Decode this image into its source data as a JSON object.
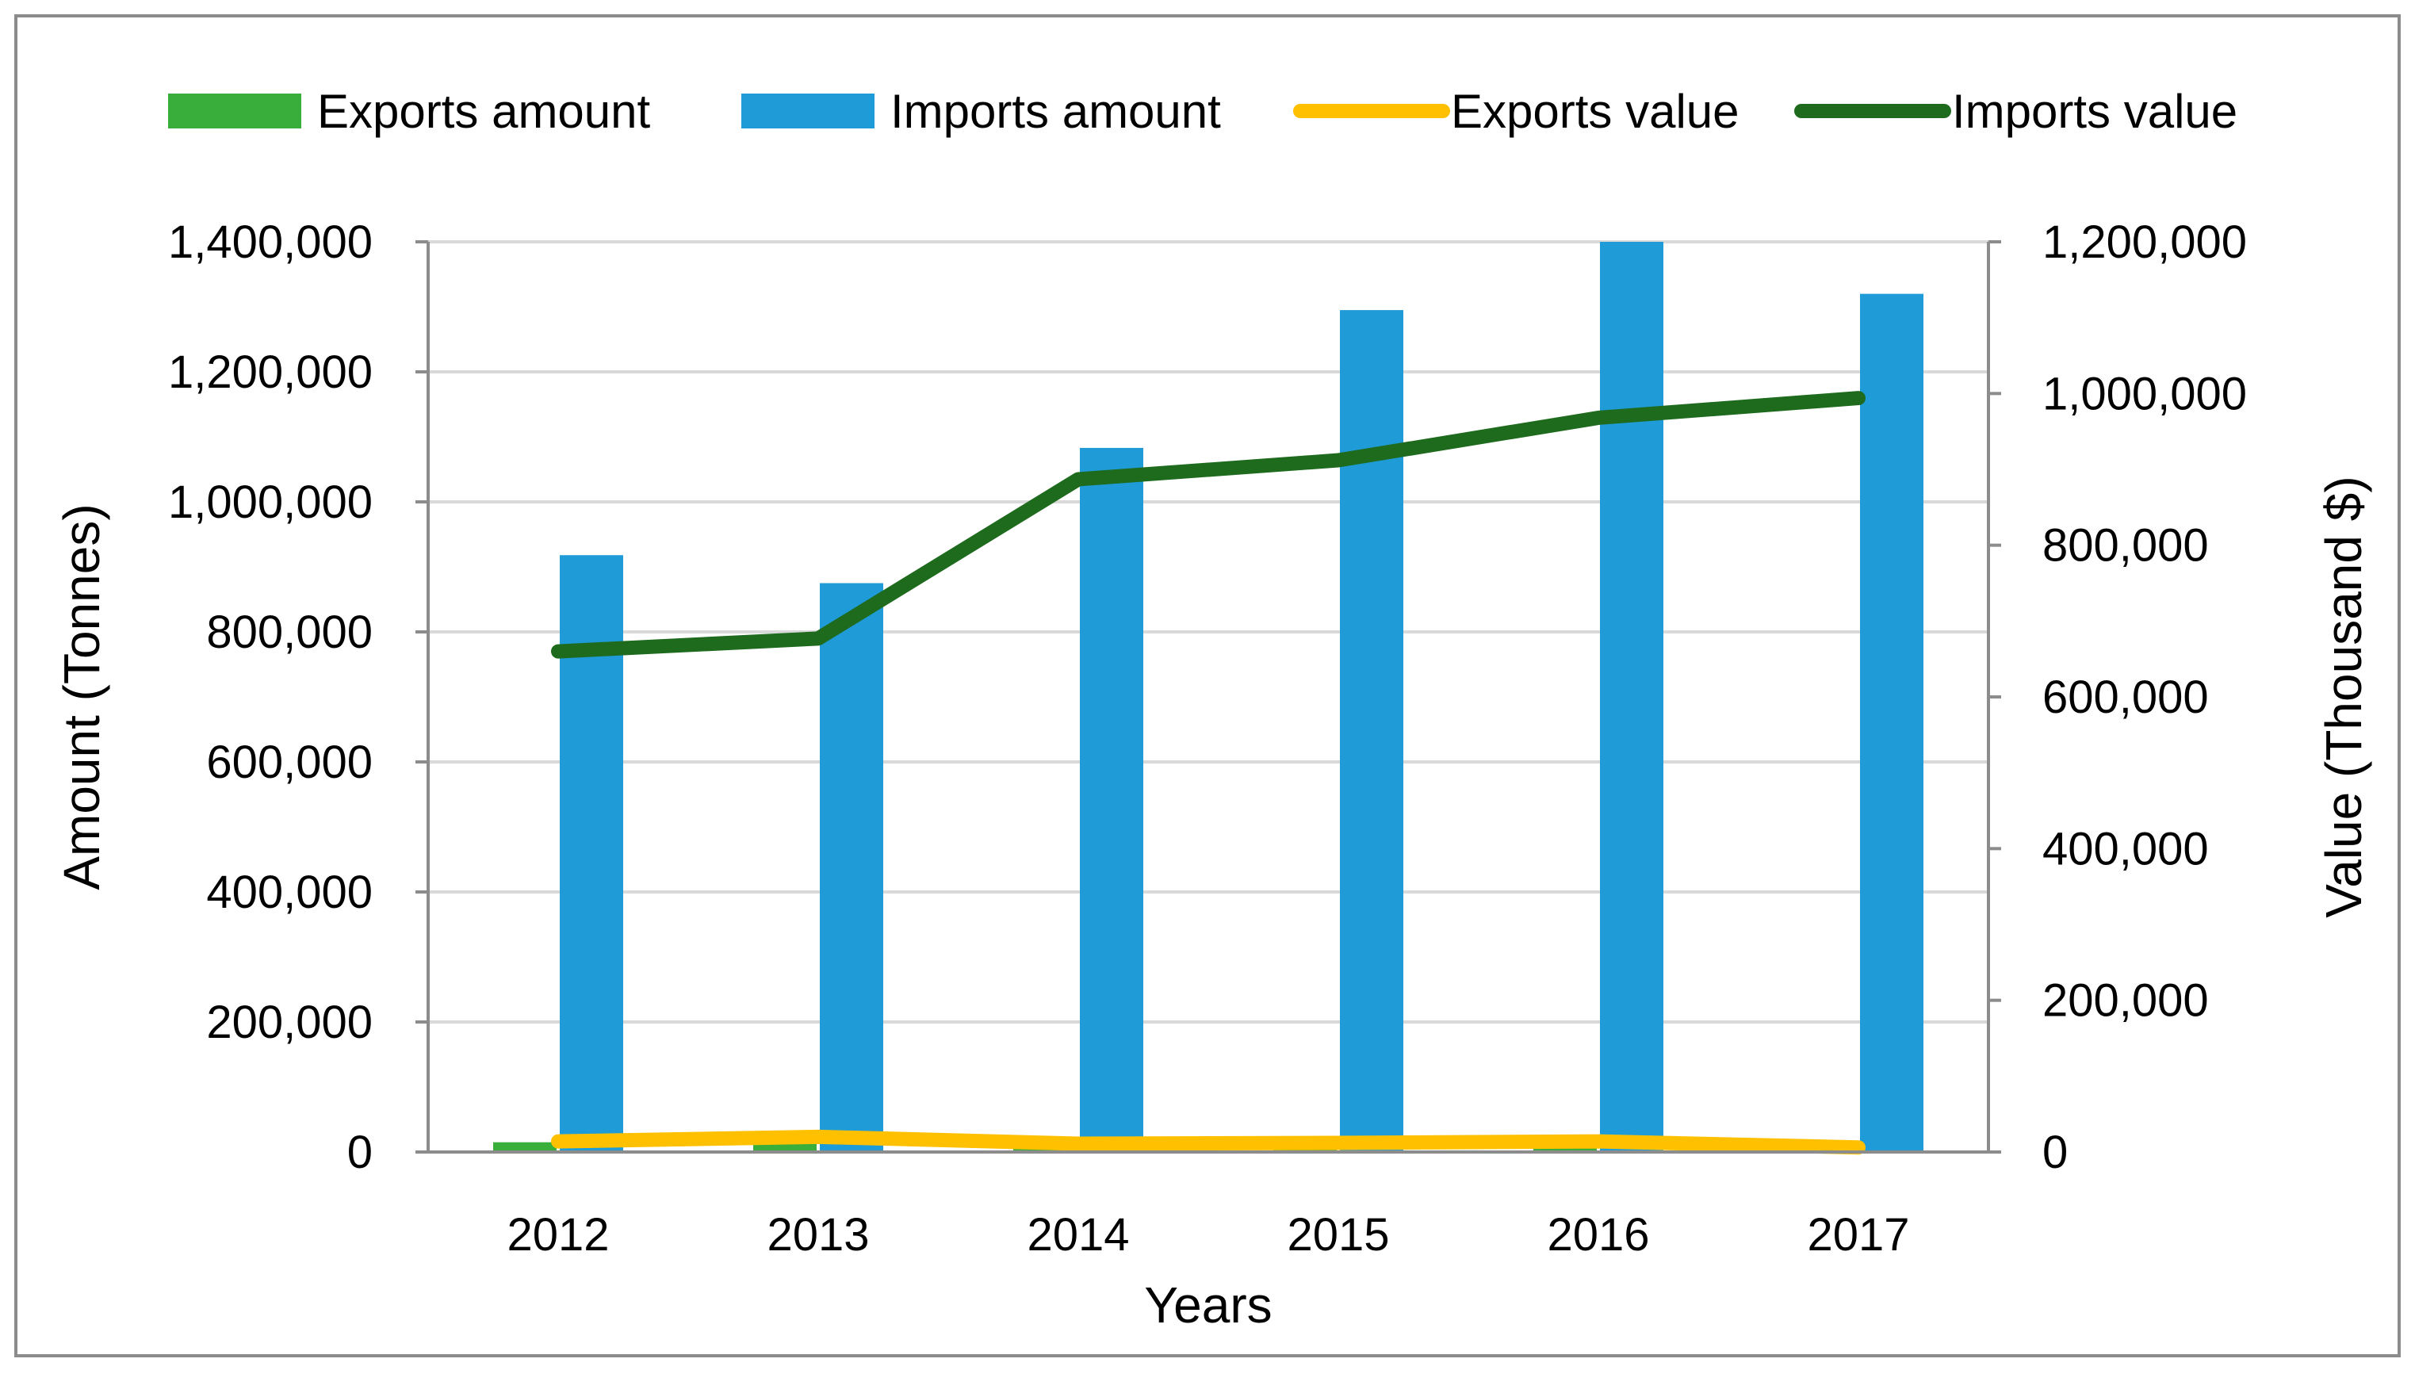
{
  "chart_data": {
    "type": "bar",
    "categories": [
      "2012",
      "2013",
      "2014",
      "2015",
      "2016",
      "2017"
    ],
    "xlabel": "Years",
    "ylabel": "Amount (Tonnes)",
    "y2label": "Value (Thousand $)",
    "ylim": [
      0,
      1400000
    ],
    "y2lim": [
      0,
      1200000
    ],
    "yticks": [
      "0",
      "200,000",
      "400,000",
      "600,000",
      "800,000",
      "1,000,000",
      "1,200,000",
      "1,400,000"
    ],
    "y2ticks": [
      "0",
      "200,000",
      "400,000",
      "600,000",
      "800,000",
      "1,000,000",
      "1,200,000"
    ],
    "grid": true,
    "legend_position": "top",
    "series": [
      {
        "name": "Exports amount",
        "kind": "bar",
        "axis": "left",
        "color": "#3aae3a",
        "values": [
          15000,
          28000,
          15000,
          10000,
          18000,
          5000
        ]
      },
      {
        "name": "Imports amount",
        "kind": "bar",
        "axis": "left",
        "color": "#1f9bd7",
        "values": [
          918000,
          875000,
          1083000,
          1295000,
          1400000,
          1320000
        ]
      },
      {
        "name": "Exports value",
        "kind": "line",
        "axis": "right",
        "color": "#ffc000",
        "values": [
          14000,
          20000,
          11000,
          12000,
          14000,
          6000
        ]
      },
      {
        "name": "Imports value",
        "kind": "line",
        "axis": "right",
        "color": "#1e6b1e",
        "values": [
          660000,
          677000,
          887000,
          912000,
          968000,
          994000
        ]
      }
    ]
  }
}
